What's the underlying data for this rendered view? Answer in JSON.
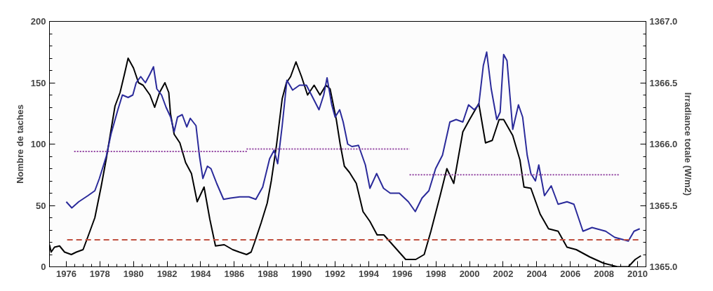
{
  "chart_data": {
    "type": "line",
    "xlabel": null,
    "ylabel": "Nombre de taches",
    "y2label": "Irradiance totale (W/m2)",
    "xlim": [
      1975.0,
      2010.5
    ],
    "xticks": [
      1976,
      1978,
      1980,
      1982,
      1984,
      1986,
      1988,
      1990,
      1992,
      1994,
      1996,
      1998,
      2000,
      2002,
      2004,
      2006,
      2008,
      2010
    ],
    "ylim": [
      0,
      200
    ],
    "yticks": [
      0,
      50,
      100,
      150,
      200
    ],
    "y2lim": [
      1365.0,
      1367.0
    ],
    "y2ticks": [
      {
        "value": 1365.0,
        "label": "1365.0"
      },
      {
        "value": 1365.5,
        "label": "1365.5"
      },
      {
        "value": 1366.0,
        "label": "1366.0"
      },
      {
        "value": 1366.5,
        "label": "1366.5"
      },
      {
        "value": 1367.0,
        "label": "1367.0"
      }
    ],
    "grid": false,
    "marker": "none",
    "series": [
      {
        "color": "#000000",
        "line_style": "solid",
        "x": [
          1975.0,
          1975.1,
          1975.3,
          1975.6,
          1975.9,
          1976.3,
          1976.6,
          1977.0,
          1977.3,
          1977.7,
          1978.07,
          1978.38,
          1978.9,
          1979.2,
          1979.48,
          1979.68,
          1980.0,
          1980.3,
          1980.57,
          1980.98,
          1981.26,
          1981.55,
          1981.87,
          1982.1,
          1982.2,
          1982.42,
          1982.76,
          1983.1,
          1983.45,
          1983.79,
          1984.2,
          1984.54,
          1984.88,
          1985.4,
          1985.9,
          1986.3,
          1986.73,
          1987.0,
          1987.21,
          1987.6,
          1987.96,
          1988.2,
          1988.51,
          1988.85,
          1989.1,
          1989.35,
          1989.67,
          1990.0,
          1990.36,
          1990.75,
          1991.1,
          1991.45,
          1991.7,
          1992.07,
          1992.3,
          1992.55,
          1992.85,
          1993.26,
          1993.66,
          1994.07,
          1994.5,
          1994.9,
          1995.55,
          1996.2,
          1996.8,
          1997.3,
          1997.7,
          1998.25,
          1998.65,
          1999.06,
          1999.6,
          2000.0,
          2000.55,
          2000.95,
          2001.35,
          2001.76,
          2002.03,
          2002.57,
          2003.0,
          2003.24,
          2003.65,
          2004.2,
          2004.7,
          2005.27,
          2005.8,
          2006.35,
          2007.16,
          2007.97,
          2008.8,
          2009.45,
          2009.86,
          2010.2
        ],
        "values": [
          18,
          12,
          16,
          17,
          12,
          10,
          12,
          14,
          25,
          40,
          65,
          88,
          131,
          142,
          158,
          170,
          162,
          150,
          148,
          140,
          130,
          142,
          150,
          142,
          125,
          108,
          101,
          85,
          76,
          53,
          65,
          39,
          17,
          18,
          14,
          12,
          10,
          12,
          20,
          36,
          52,
          70,
          99,
          137,
          150,
          155,
          167,
          155,
          140,
          148,
          140,
          148,
          145,
          120,
          100,
          82,
          77,
          68,
          45,
          37,
          26,
          26,
          16,
          6,
          6,
          10,
          29,
          58,
          80,
          68,
          110,
          120,
          133,
          101,
          103,
          120,
          120,
          107,
          87,
          65,
          64,
          43,
          31,
          29,
          16,
          14,
          8,
          3,
          0,
          0,
          6,
          9
        ]
      },
      {
        "color": "#2a2a9a",
        "line_style": "solid",
        "axis": "y2",
        "x": [
          1976.0,
          1976.33,
          1976.74,
          1977.29,
          1977.7,
          1977.97,
          1978.38,
          1978.66,
          1979.07,
          1979.34,
          1979.68,
          1979.96,
          1980.16,
          1980.43,
          1980.71,
          1980.98,
          1981.19,
          1981.39,
          1981.67,
          1981.94,
          1982.21,
          1982.42,
          1982.62,
          1982.9,
          1983.17,
          1983.38,
          1983.72,
          1983.93,
          1984.13,
          1984.4,
          1984.61,
          1984.95,
          1985.36,
          1985.77,
          1986.32,
          1986.87,
          1987.28,
          1987.69,
          1988.1,
          1988.37,
          1988.58,
          1988.85,
          1989.13,
          1989.47,
          1989.88,
          1990.29,
          1990.63,
          1991.04,
          1991.32,
          1991.52,
          1991.8,
          1992.0,
          1992.27,
          1992.48,
          1992.75,
          1993.0,
          1993.39,
          1993.8,
          1994.07,
          1994.47,
          1994.88,
          1995.28,
          1995.82,
          1996.36,
          1996.77,
          1997.17,
          1997.58,
          1997.98,
          1998.39,
          1998.83,
          1999.2,
          1999.6,
          1999.94,
          2000.28,
          2000.55,
          2000.82,
          2001.02,
          2001.29,
          2001.62,
          2001.82,
          2002.03,
          2002.23,
          2002.57,
          2002.91,
          2003.16,
          2003.43,
          2003.65,
          2003.92,
          2004.12,
          2004.46,
          2004.86,
          2005.27,
          2005.8,
          2006.21,
          2006.75,
          2007.29,
          2008.1,
          2008.64,
          2009.45,
          2009.79,
          2010.13
        ],
        "values": [
          1365.53,
          1365.48,
          1365.53,
          1365.58,
          1365.62,
          1365.72,
          1365.9,
          1366.08,
          1366.28,
          1366.4,
          1366.38,
          1366.4,
          1366.5,
          1366.55,
          1366.5,
          1366.57,
          1366.63,
          1366.45,
          1366.4,
          1366.3,
          1366.22,
          1366.1,
          1366.22,
          1366.24,
          1366.14,
          1366.21,
          1366.15,
          1365.9,
          1365.72,
          1365.82,
          1365.8,
          1365.68,
          1365.55,
          1365.56,
          1365.57,
          1365.57,
          1365.55,
          1365.65,
          1365.88,
          1365.95,
          1365.84,
          1366.15,
          1366.52,
          1366.44,
          1366.48,
          1366.48,
          1366.39,
          1366.28,
          1366.4,
          1366.54,
          1366.32,
          1366.22,
          1366.28,
          1366.18,
          1366.0,
          1365.98,
          1365.99,
          1365.83,
          1365.64,
          1365.76,
          1365.64,
          1365.6,
          1365.6,
          1365.53,
          1365.45,
          1365.56,
          1365.62,
          1365.8,
          1365.91,
          1366.18,
          1366.2,
          1366.18,
          1366.32,
          1366.28,
          1366.32,
          1366.64,
          1366.75,
          1366.45,
          1366.2,
          1366.26,
          1366.73,
          1366.68,
          1366.12,
          1366.32,
          1366.22,
          1365.91,
          1365.76,
          1365.7,
          1365.83,
          1365.58,
          1365.66,
          1365.51,
          1365.53,
          1365.51,
          1365.29,
          1365.32,
          1365.29,
          1365.24,
          1365.21,
          1365.29,
          1365.31
        ]
      },
      {
        "color": "#9040a0",
        "line_style": "dotted",
        "x": [
          1976.47,
          1986.8
        ],
        "values": [
          94,
          94
        ]
      },
      {
        "color": "#9040a0",
        "line_style": "dotted",
        "x": [
          1986.73,
          1996.43
        ],
        "values": [
          96,
          96
        ]
      },
      {
        "color": "#9040a0",
        "line_style": "dotted",
        "x": [
          1996.43,
          2008.9
        ],
        "values": [
          75,
          75
        ]
      },
      {
        "color": "#c05040",
        "line_style": "dashed",
        "x": [
          1976.05,
          2010.1
        ],
        "values": [
          22,
          22
        ]
      }
    ]
  }
}
